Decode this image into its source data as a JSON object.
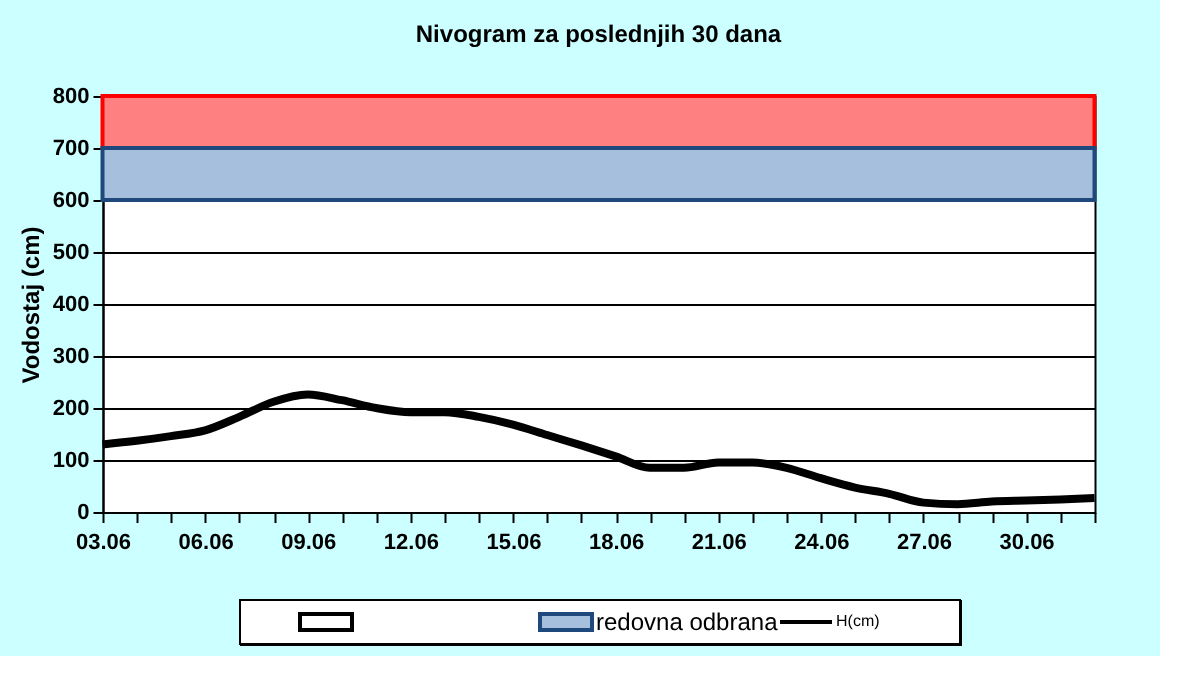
{
  "chart_data": {
    "type": "line",
    "title": "Nivogram za poslednjih 30 dana",
    "ylabel": "Vodostaj (cm)",
    "x": [
      "--06-03",
      "--06-04",
      "--06-05",
      "--06-06",
      "--06-07",
      "--06-08",
      "--06-09",
      "--06-10",
      "--06-11",
      "--06-12",
      "--06-13",
      "--06-14",
      "--06-15",
      "--06-16",
      "--06-17",
      "--06-18",
      "--06-19",
      "--06-20",
      "--06-21",
      "--06-22",
      "--06-23",
      "--06-24",
      "--06-25",
      "--06-26",
      "--06-27",
      "--06-28",
      "--06-29",
      "--06-30",
      "--07-01",
      "--07-02"
    ],
    "series": [
      {
        "name": "H(cm)",
        "color": "#000000",
        "values": [
          130,
          137,
          146,
          157,
          183,
          212,
          226,
          215,
          200,
          192,
          192,
          183,
          168,
          148,
          128,
          107,
          85,
          85,
          95,
          95,
          85,
          65,
          47,
          35,
          18,
          15,
          20,
          22,
          24,
          27
        ]
      }
    ],
    "xlim": [
      "--06-03",
      "--07-02"
    ],
    "xticks": [
      {
        "value": "--06-03",
        "label": "03.06"
      },
      {
        "value": "--06-06",
        "label": "06.06"
      },
      {
        "value": "--06-09",
        "label": "09.06"
      },
      {
        "value": "--06-12",
        "label": "12.06"
      },
      {
        "value": "--06-15",
        "label": "15.06"
      },
      {
        "value": "--06-18",
        "label": "18.06"
      },
      {
        "value": "--06-21",
        "label": "21.06"
      },
      {
        "value": "--06-24",
        "label": "24.06"
      },
      {
        "value": "--06-27",
        "label": "27.06"
      },
      {
        "value": "--06-30",
        "label": "30.06"
      }
    ],
    "ylim": [
      0,
      800
    ],
    "yticks": [
      0,
      100,
      200,
      300,
      400,
      500,
      600,
      700,
      800
    ],
    "grid": "y",
    "legend": "bottom",
    "marker": "none",
    "line_style": "solid",
    "bands": [
      {
        "axis": "y",
        "from": 700,
        "to": 800,
        "color": "#ff8080"
      },
      {
        "axis": "y",
        "from": 600,
        "to": 700,
        "label": "redovna odbrana",
        "color": "#a6bfdd"
      }
    ]
  }
}
